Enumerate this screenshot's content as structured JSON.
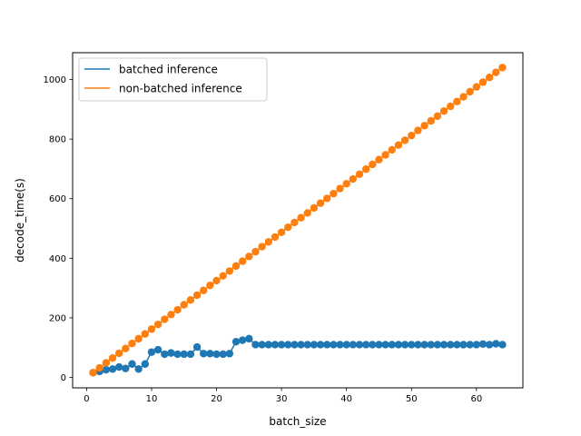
{
  "chart_data": {
    "type": "line",
    "xlabel": "batch_size",
    "ylabel": "decode_time(s)",
    "xlim": [
      -2.15,
      67.15
    ],
    "ylim": [
      -35,
      1090
    ],
    "xticks": [
      0,
      10,
      20,
      30,
      40,
      50,
      60
    ],
    "yticks": [
      0,
      200,
      400,
      600,
      800,
      1000
    ],
    "grid": false,
    "legend_position": "top-left",
    "x": [
      1,
      2,
      3,
      4,
      5,
      6,
      7,
      8,
      9,
      10,
      11,
      12,
      13,
      14,
      15,
      16,
      17,
      18,
      19,
      20,
      21,
      22,
      23,
      24,
      25,
      26,
      27,
      28,
      29,
      30,
      31,
      32,
      33,
      34,
      35,
      36,
      37,
      38,
      39,
      40,
      41,
      42,
      43,
      44,
      45,
      46,
      47,
      48,
      49,
      50,
      51,
      52,
      53,
      54,
      55,
      56,
      57,
      58,
      59,
      60,
      61,
      62,
      63,
      64
    ],
    "series": [
      {
        "name": "batched inference",
        "color": "#1f77b4",
        "values": [
          16,
          20,
          26,
          28,
          35,
          30,
          45,
          28,
          45,
          85,
          93,
          78,
          82,
          78,
          78,
          78,
          102,
          80,
          80,
          78,
          78,
          80,
          120,
          125,
          130,
          110,
          110,
          110,
          110,
          110,
          110,
          110,
          110,
          110,
          110,
          110,
          110,
          110,
          110,
          110,
          110,
          110,
          110,
          110,
          110,
          110,
          110,
          110,
          110,
          110,
          110,
          110,
          110,
          110,
          110,
          110,
          110,
          110,
          110,
          110,
          112,
          110,
          113,
          110
        ]
      },
      {
        "name": "non-batched inference",
        "color": "#ff7f0e",
        "values": [
          16,
          32,
          49,
          65,
          81,
          97,
          114,
          130,
          146,
          162,
          178,
          195,
          211,
          227,
          244,
          260,
          276,
          292,
          309,
          325,
          341,
          357,
          374,
          390,
          406,
          422,
          439,
          455,
          471,
          487,
          504,
          520,
          536,
          552,
          569,
          585,
          601,
          617,
          634,
          650,
          666,
          682,
          699,
          715,
          731,
          747,
          764,
          780,
          796,
          812,
          829,
          845,
          861,
          877,
          894,
          910,
          926,
          942,
          959,
          975,
          991,
          1007,
          1024,
          1040
        ]
      }
    ]
  }
}
